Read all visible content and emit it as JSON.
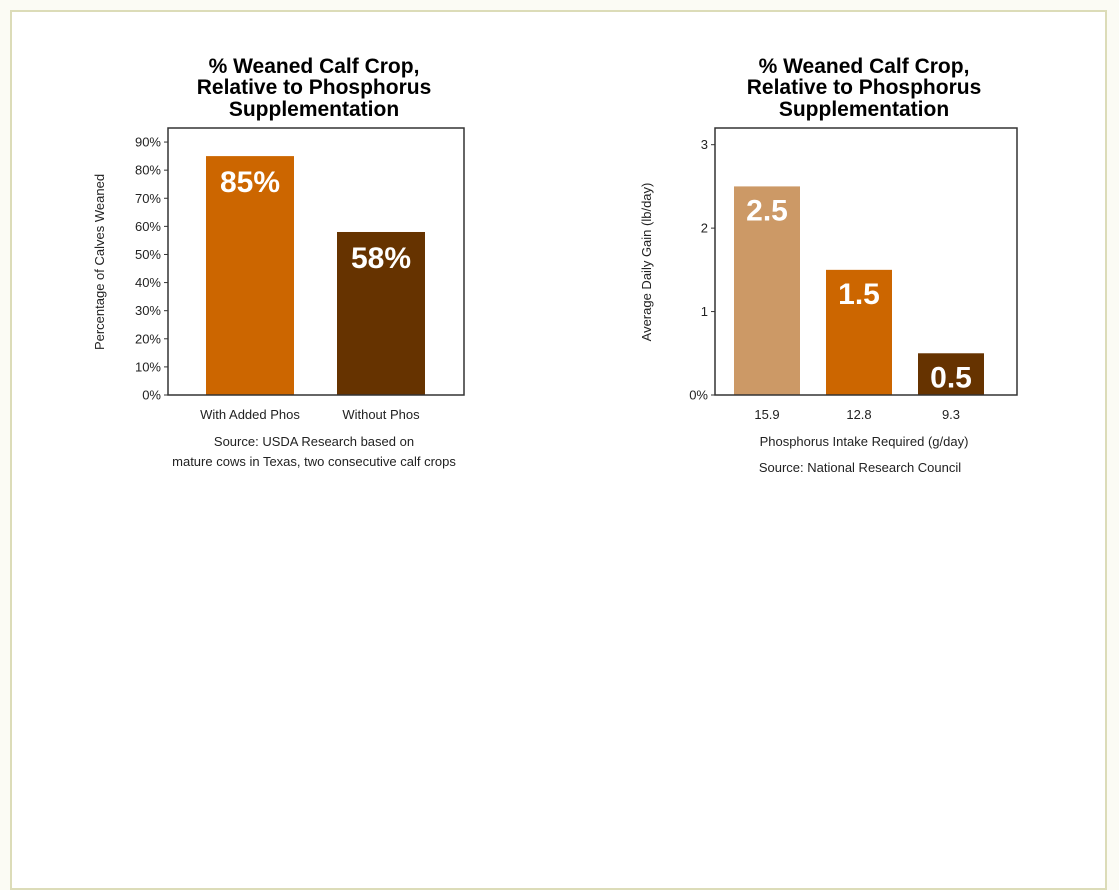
{
  "chart_data": [
    {
      "type": "bar",
      "title": [
        "% Weaned Calf Crop,",
        "Relative to Phosphorus",
        "Supplementation"
      ],
      "ylabel": "Percentage of Calves Weaned",
      "xlabel": "",
      "categories": [
        "With Added Phos",
        "Without Phos"
      ],
      "values": [
        85,
        58
      ],
      "data_labels": [
        "85%",
        "58%"
      ],
      "colors": [
        "#cc6600",
        "#663300"
      ],
      "ylim": [
        0,
        95
      ],
      "yticks": [
        0,
        10,
        20,
        30,
        40,
        50,
        60,
        70,
        80,
        90
      ],
      "ytick_labels": [
        "0%",
        "10%",
        "20%",
        "30%",
        "40%",
        "50%",
        "60%",
        "70%",
        "80%",
        "90%"
      ],
      "source": [
        "Source: USDA Research based on",
        "mature cows in Texas, two consecutive calf crops"
      ],
      "grid": false,
      "legend": "none"
    },
    {
      "type": "bar",
      "title": [
        "% Weaned Calf Crop,",
        "Relative to Phosphorus",
        "Supplementation"
      ],
      "ylabel": "Average Daily Gain (lb/day)",
      "xlabel": "Phosphorus Intake Required (g/day)",
      "categories": [
        "15.9",
        "12.8",
        "9.3"
      ],
      "values": [
        2.5,
        1.5,
        0.5
      ],
      "data_labels": [
        "2.5",
        "1.5",
        "0.5"
      ],
      "colors": [
        "#cc9966",
        "#cc6600",
        "#663300"
      ],
      "ylim": [
        0,
        3.2
      ],
      "yticks": [
        0,
        1,
        2,
        3
      ],
      "ytick_labels": [
        "0%",
        "1",
        "2",
        "3"
      ],
      "source": [
        "Source: National Research Council"
      ],
      "grid": false,
      "legend": "none"
    }
  ]
}
